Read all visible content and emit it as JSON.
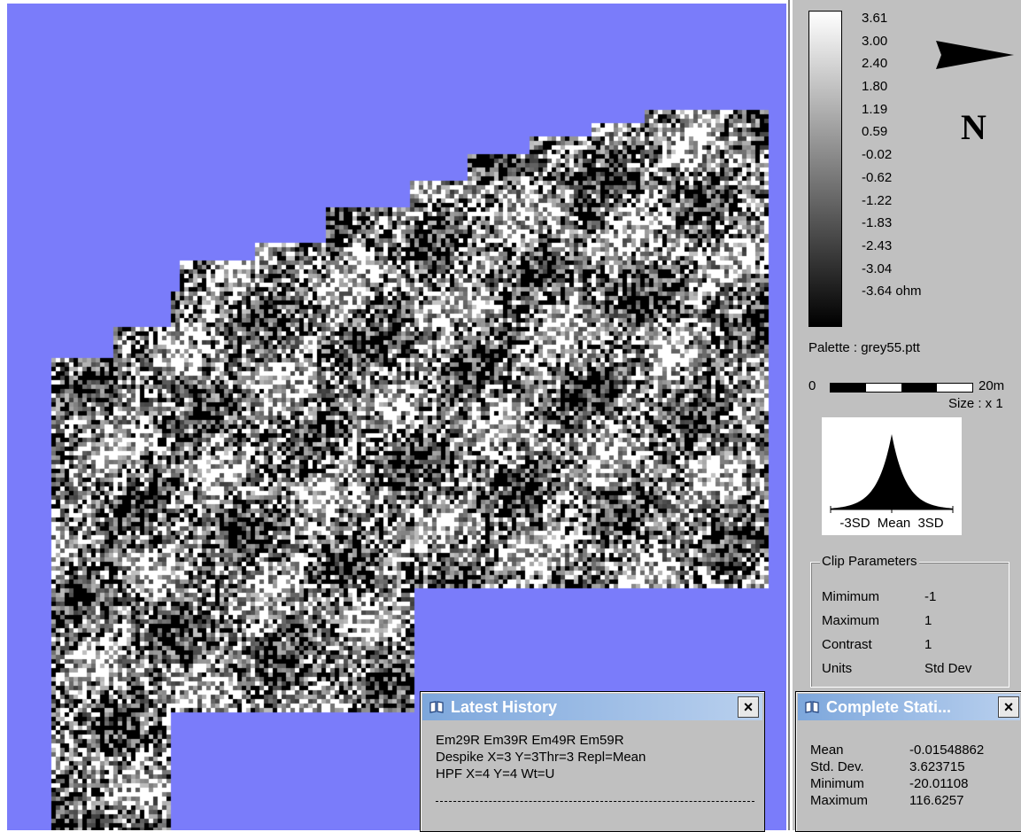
{
  "map": {
    "background_color": "#7a7cfa"
  },
  "palette": {
    "labels": [
      "3.61",
      "3.00",
      "2.40",
      "1.80",
      "1.19",
      "0.59",
      "-0.02",
      "-0.62",
      "-1.22",
      "-1.83",
      "-2.43",
      "-3.04",
      "-3.64  ohm"
    ],
    "name": "Palette : grey55.ptt"
  },
  "north": {
    "letter": "N",
    "icon": "north-arrow-icon"
  },
  "scale": {
    "start": "0",
    "end": "20m",
    "size": "Size : x 1"
  },
  "histogram": {
    "left_label": "-3SD",
    "mid_label": "Mean",
    "right_label": "3SD"
  },
  "clip_parameters": {
    "title": "Clip Parameters",
    "rows": [
      {
        "label": "Mimimum",
        "value": "-1"
      },
      {
        "label": "Maximum",
        "value": "1"
      },
      {
        "label": "Contrast",
        "value": "1"
      },
      {
        "label": "Units",
        "value": "Std Dev"
      }
    ]
  },
  "history_window": {
    "title": "Latest History",
    "close": "×",
    "lines": [
      "Em29R Em39R Em49R Em59R",
      "Despike X=3 Y=3Thr=3 Repl=Mean",
      "HPF X=4 Y=4 Wt=U"
    ]
  },
  "stats_window": {
    "title": "Complete Stati...",
    "close": "×",
    "rows": [
      {
        "label": "Mean",
        "value": "-0.01548862"
      },
      {
        "label": "Std. Dev.",
        "value": "3.623715"
      },
      {
        "label": "Minimum",
        "value": "-20.01108"
      },
      {
        "label": "Maximum",
        "value": "116.6257"
      }
    ]
  }
}
